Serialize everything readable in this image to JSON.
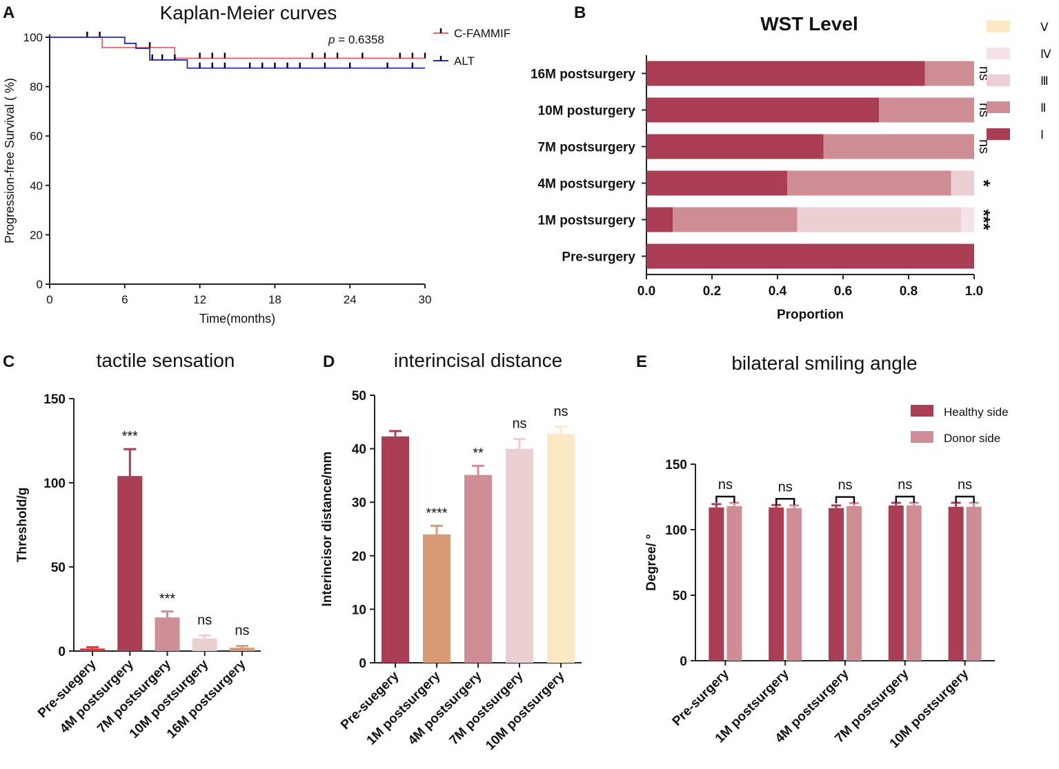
{
  "panels": {
    "A": "A",
    "B": "B",
    "C": "C",
    "D": "D",
    "E": "E"
  },
  "chart_data": [
    {
      "id": "A",
      "type": "line",
      "title": "Kaplan-Meier curves",
      "xlabel": "Time(months)",
      "ylabel": "Progression-free Survival ( %)",
      "xlim": [
        0,
        30
      ],
      "ylim": [
        0,
        100
      ],
      "xticks": [
        "0",
        "6",
        "12",
        "18",
        "24",
        "30"
      ],
      "yticks": [
        "0",
        "20",
        "40",
        "60",
        "80",
        "100"
      ],
      "annotation_p": "p",
      "annotation_value": " = 0.6358",
      "legend_position": "top-right",
      "series": [
        {
          "name": "C-FAMMIF",
          "color": "#e8636b",
          "steps": [
            [
              0,
              100
            ],
            [
              4.2,
              95.8
            ],
            [
              10,
              91.5
            ],
            [
              30,
              91.5
            ]
          ],
          "censored": [
            [
              3,
              100
            ],
            [
              4,
              100
            ],
            [
              8,
              95.8
            ],
            [
              12,
              91.5
            ],
            [
              13,
              91.5
            ],
            [
              14,
              91.5
            ],
            [
              21,
              91.5
            ],
            [
              22,
              91.5
            ],
            [
              23,
              91.5
            ],
            [
              25,
              91.5
            ],
            [
              28,
              91.5
            ],
            [
              29,
              91.5
            ],
            [
              30,
              91.5
            ]
          ]
        },
        {
          "name": "ALT",
          "color": "#1f2fb5",
          "steps": [
            [
              0,
              100
            ],
            [
              6,
              97.5
            ],
            [
              6.9,
              95.5
            ],
            [
              8,
              90.8
            ],
            [
              11,
              87.5
            ],
            [
              30,
              87.5
            ]
          ],
          "censored": [
            [
              8.2,
              90.8
            ],
            [
              9,
              90.8
            ],
            [
              10,
              90.8
            ],
            [
              12,
              87.5
            ],
            [
              13,
              87.5
            ],
            [
              14,
              87.5
            ],
            [
              16,
              87.5
            ],
            [
              17,
              87.5
            ],
            [
              18,
              87.5
            ],
            [
              19,
              87.5
            ],
            [
              20,
              87.5
            ],
            [
              22,
              87.5
            ],
            [
              24,
              87.5
            ],
            [
              27,
              87.5
            ],
            [
              29,
              87.5
            ]
          ]
        }
      ]
    },
    {
      "id": "B",
      "type": "bar",
      "orientation": "horizontal-stacked",
      "title": "WST Level",
      "xlabel": "Proportion",
      "ylabel": "",
      "xlim": [
        0,
        1
      ],
      "xticks": [
        "0.0",
        "0.2",
        "0.4",
        "0.6",
        "0.8",
        "1.0"
      ],
      "categories": [
        "16M postsurgery",
        "10M posturgery",
        "7M postsurgery",
        "4M postsurgery",
        "1M postsurgery",
        "Pre-surgery"
      ],
      "significance": [
        "ns",
        "ns",
        "ns",
        "*",
        "***",
        ""
      ],
      "legend_position": "right",
      "series": [
        {
          "name": "Ⅰ",
          "color": "#a93d54",
          "values": [
            0.85,
            0.71,
            0.54,
            0.43,
            0.08,
            1.0
          ]
        },
        {
          "name": "Ⅱ",
          "color": "#cf8e96",
          "values": [
            0.15,
            0.29,
            0.46,
            0.5,
            0.38,
            0.0
          ]
        },
        {
          "name": "Ⅲ",
          "color": "#ebcfd3",
          "values": [
            0.0,
            0.0,
            0.0,
            0.07,
            0.5,
            0.0
          ]
        },
        {
          "name": "Ⅳ",
          "color": "#f5e3e9",
          "values": [
            0.0,
            0.0,
            0.0,
            0.0,
            0.04,
            0.0
          ]
        },
        {
          "name": "Ⅴ",
          "color": "#fde8c5",
          "values": [
            0.0,
            0.0,
            0.0,
            0.0,
            0.0,
            0.0
          ]
        }
      ]
    },
    {
      "id": "C",
      "type": "bar",
      "title": "tactile sensation",
      "xlabel": "",
      "ylabel": "Threshold/g",
      "ylim": [
        0,
        150
      ],
      "yticks": [
        "0",
        "50",
        "100",
        "150"
      ],
      "categories": [
        "Pre-suegery",
        "4M postsurgery",
        "7M postsurgery",
        "10M postsurgery",
        "16M postsurgery"
      ],
      "values": [
        1.5,
        104,
        20,
        7.5,
        2
      ],
      "errors": [
        0.8,
        16,
        3.5,
        1.8,
        1
      ],
      "colors": [
        "#e03232",
        "#a93d54",
        "#cf8e96",
        "#ebcfd3",
        "#d99b76"
      ],
      "significance": [
        "",
        "***",
        "***",
        "ns",
        "ns"
      ]
    },
    {
      "id": "D",
      "type": "bar",
      "title": "interincisal distance",
      "xlabel": "",
      "ylabel": "Interincisor distance/mm",
      "ylim": [
        0,
        50
      ],
      "yticks": [
        "0",
        "10",
        "20",
        "30",
        "40",
        "50"
      ],
      "categories": [
        "Pre-suegery",
        "1M postsurgery",
        "4M postsurgery",
        "7M postsurgery",
        "10M postsurgery"
      ],
      "values": [
        42.3,
        24,
        35.1,
        40,
        42.8
      ],
      "errors": [
        1,
        1.6,
        1.7,
        1.8,
        1.3
      ],
      "colors": [
        "#a93d54",
        "#d99b76",
        "#cf8e96",
        "#ebcfd3",
        "#fde8c5"
      ],
      "significance": [
        "",
        "****",
        "**",
        "ns",
        "ns"
      ]
    },
    {
      "id": "E",
      "type": "bar",
      "title": "bilateral smiling angle",
      "xlabel": "",
      "ylabel": "Degree/ °",
      "ylim": [
        0,
        150
      ],
      "yticks": [
        "0",
        "50",
        "100",
        "150"
      ],
      "categories": [
        "Pre-surgery",
        "1M postsurgery",
        "4M postsurgery",
        "7M postsurgery",
        "10M postsurgery"
      ],
      "legend_position": "top-right",
      "series": [
        {
          "name": "Healthy side",
          "color": "#a93d54",
          "values": [
            117,
            117,
            116.5,
            118.5,
            117.5
          ],
          "errors": [
            2.5,
            1.8,
            2,
            2,
            3
          ]
        },
        {
          "name": "Donor side",
          "color": "#cf8e96",
          "values": [
            118,
            116.5,
            118,
            118.5,
            117.5
          ],
          "errors": [
            2.5,
            2,
            2.2,
            2,
            3
          ]
        }
      ],
      "significance": [
        "ns",
        "ns",
        "ns",
        "ns",
        "ns"
      ]
    }
  ]
}
